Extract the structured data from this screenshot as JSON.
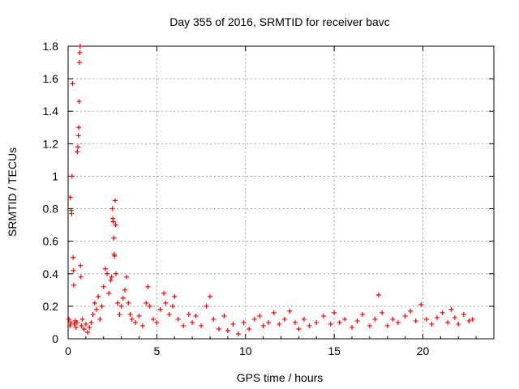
{
  "chart_data": {
    "type": "scatter",
    "title": "Day 355 of 2016, SRMTID for receiver bavc",
    "xlabel": "GPS time / hours",
    "ylabel": "SRMTID / TECUs",
    "xlim": [
      0,
      24
    ],
    "ylim": [
      0,
      1.8
    ],
    "xticks": [
      0,
      5,
      10,
      15,
      20
    ],
    "yticks": [
      0,
      0.2,
      0.4,
      0.6,
      0.8,
      1,
      1.2,
      1.4,
      1.6,
      1.8
    ],
    "grid": true,
    "marker": "+",
    "color": "#ff0000",
    "series": [
      {
        "name": "bavc",
        "points": [
          [
            0.05,
            0.12
          ],
          [
            0.1,
            0.08
          ],
          [
            0.12,
            0.87
          ],
          [
            0.15,
            0.1
          ],
          [
            0.18,
            0.79
          ],
          [
            0.2,
            0.77
          ],
          [
            0.22,
            1.0
          ],
          [
            0.25,
            1.57
          ],
          [
            0.28,
            0.5
          ],
          [
            0.3,
            0.42
          ],
          [
            0.32,
            0.33
          ],
          [
            0.35,
            0.09
          ],
          [
            0.4,
            0.11
          ],
          [
            0.45,
            0.07
          ],
          [
            0.5,
            0.1
          ],
          [
            0.52,
            1.15
          ],
          [
            0.55,
            1.18
          ],
          [
            0.58,
            1.25
          ],
          [
            0.6,
            1.3
          ],
          [
            0.62,
            1.46
          ],
          [
            0.64,
            1.7
          ],
          [
            0.66,
            1.76
          ],
          [
            0.68,
            1.8
          ],
          [
            0.7,
            0.45
          ],
          [
            0.72,
            0.38
          ],
          [
            0.75,
            0.08
          ],
          [
            0.8,
            0.12
          ],
          [
            0.9,
            0.06
          ],
          [
            1.0,
            0.09
          ],
          [
            1.1,
            0.04
          ],
          [
            1.2,
            0.07
          ],
          [
            1.3,
            0.1
          ],
          [
            1.4,
            0.15
          ],
          [
            1.5,
            0.22
          ],
          [
            1.6,
            0.18
          ],
          [
            1.7,
            0.26
          ],
          [
            1.8,
            0.12
          ],
          [
            1.9,
            0.2
          ],
          [
            2.0,
            0.32
          ],
          [
            2.1,
            0.43
          ],
          [
            2.2,
            0.4
          ],
          [
            2.3,
            0.28
          ],
          [
            2.4,
            0.36
          ],
          [
            2.45,
            0.38
          ],
          [
            2.5,
            0.8
          ],
          [
            2.52,
            0.74
          ],
          [
            2.55,
            0.72
          ],
          [
            2.58,
            0.62
          ],
          [
            2.6,
            0.52
          ],
          [
            2.62,
            0.51
          ],
          [
            2.65,
            0.85
          ],
          [
            2.68,
            0.7
          ],
          [
            2.7,
            0.4
          ],
          [
            2.8,
            0.22
          ],
          [
            2.9,
            0.15
          ],
          [
            3.0,
            0.2
          ],
          [
            3.1,
            0.25
          ],
          [
            3.2,
            0.3
          ],
          [
            3.3,
            0.38
          ],
          [
            3.4,
            0.22
          ],
          [
            3.5,
            0.15
          ],
          [
            3.6,
            0.12
          ],
          [
            3.8,
            0.1
          ],
          [
            4.0,
            0.14
          ],
          [
            4.2,
            0.08
          ],
          [
            4.4,
            0.22
          ],
          [
            4.5,
            0.32
          ],
          [
            4.6,
            0.2
          ],
          [
            4.8,
            0.12
          ],
          [
            5.0,
            0.1
          ],
          [
            5.2,
            0.18
          ],
          [
            5.4,
            0.28
          ],
          [
            5.5,
            0.22
          ],
          [
            5.7,
            0.15
          ],
          [
            5.9,
            0.2
          ],
          [
            6.0,
            0.26
          ],
          [
            6.2,
            0.12
          ],
          [
            6.5,
            0.08
          ],
          [
            6.8,
            0.15
          ],
          [
            7.0,
            0.1
          ],
          [
            7.2,
            0.14
          ],
          [
            7.5,
            0.08
          ],
          [
            7.8,
            0.2
          ],
          [
            8.0,
            0.26
          ],
          [
            8.2,
            0.12
          ],
          [
            8.5,
            0.06
          ],
          [
            8.8,
            0.14
          ],
          [
            9.0,
            0.05
          ],
          [
            9.3,
            0.09
          ],
          [
            9.6,
            0.03
          ],
          [
            9.9,
            0.1
          ],
          [
            10.2,
            0.06
          ],
          [
            10.5,
            0.12
          ],
          [
            10.8,
            0.14
          ],
          [
            11.0,
            0.08
          ],
          [
            11.3,
            0.1
          ],
          [
            11.6,
            0.16
          ],
          [
            11.9,
            0.09
          ],
          [
            12.2,
            0.12
          ],
          [
            12.5,
            0.17
          ],
          [
            12.8,
            0.1
          ],
          [
            13.0,
            0.06
          ],
          [
            13.3,
            0.12
          ],
          [
            13.6,
            0.08
          ],
          [
            14.0,
            0.1
          ],
          [
            14.4,
            0.14
          ],
          [
            14.8,
            0.09
          ],
          [
            15.0,
            0.16
          ],
          [
            15.3,
            0.1
          ],
          [
            15.6,
            0.12
          ],
          [
            16.0,
            0.07
          ],
          [
            16.3,
            0.11
          ],
          [
            16.6,
            0.15
          ],
          [
            17.0,
            0.08
          ],
          [
            17.3,
            0.12
          ],
          [
            17.5,
            0.27
          ],
          [
            17.7,
            0.16
          ],
          [
            18.0,
            0.08
          ],
          [
            18.3,
            0.12
          ],
          [
            18.6,
            0.1
          ],
          [
            19.0,
            0.14
          ],
          [
            19.3,
            0.17
          ],
          [
            19.6,
            0.11
          ],
          [
            19.9,
            0.21
          ],
          [
            20.2,
            0.12
          ],
          [
            20.5,
            0.09
          ],
          [
            20.8,
            0.13
          ],
          [
            21.1,
            0.16
          ],
          [
            21.4,
            0.1
          ],
          [
            21.6,
            0.18
          ],
          [
            21.8,
            0.13
          ],
          [
            22.0,
            0.09
          ],
          [
            22.3,
            0.15
          ],
          [
            22.6,
            0.11
          ],
          [
            22.8,
            0.12
          ]
        ]
      }
    ]
  }
}
